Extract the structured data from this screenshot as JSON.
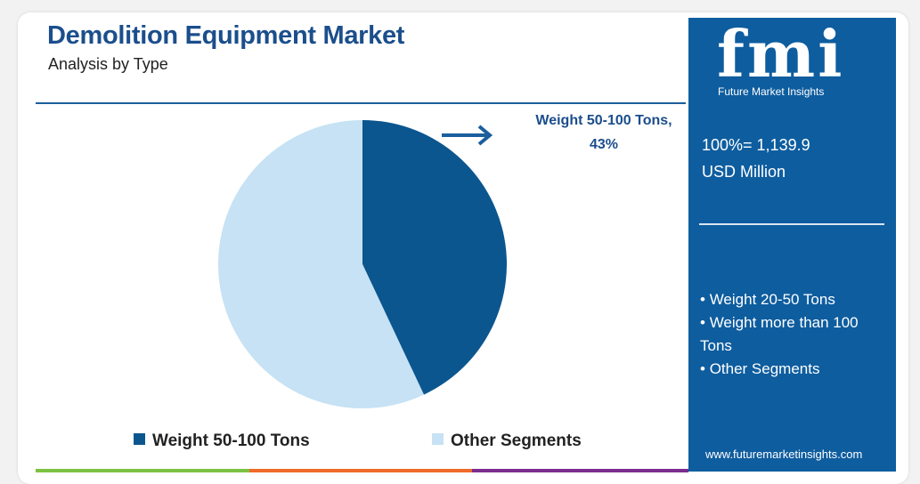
{
  "chart_data": {
    "type": "pie",
    "title": "Demolition Equipment Market",
    "subtitle": "Analysis by Type",
    "categories": [
      "Weight 50-100 Tons",
      "Other Segments"
    ],
    "values": [
      43,
      57
    ],
    "colors": [
      "#0b568f",
      "#c6e2f4"
    ],
    "annotation": "Weight 50-100 Tons, 43%"
  },
  "sidebar": {
    "logo": "fmi",
    "logo_caption": "Future Market Insights",
    "total": "100%= 1,139.9",
    "unit": "USD Million",
    "bullets": [
      "Weight 20-50 Tons",
      "Weight more than 100 Tons",
      "Other Segments"
    ],
    "url": "www.futuremarketinsights.com"
  }
}
